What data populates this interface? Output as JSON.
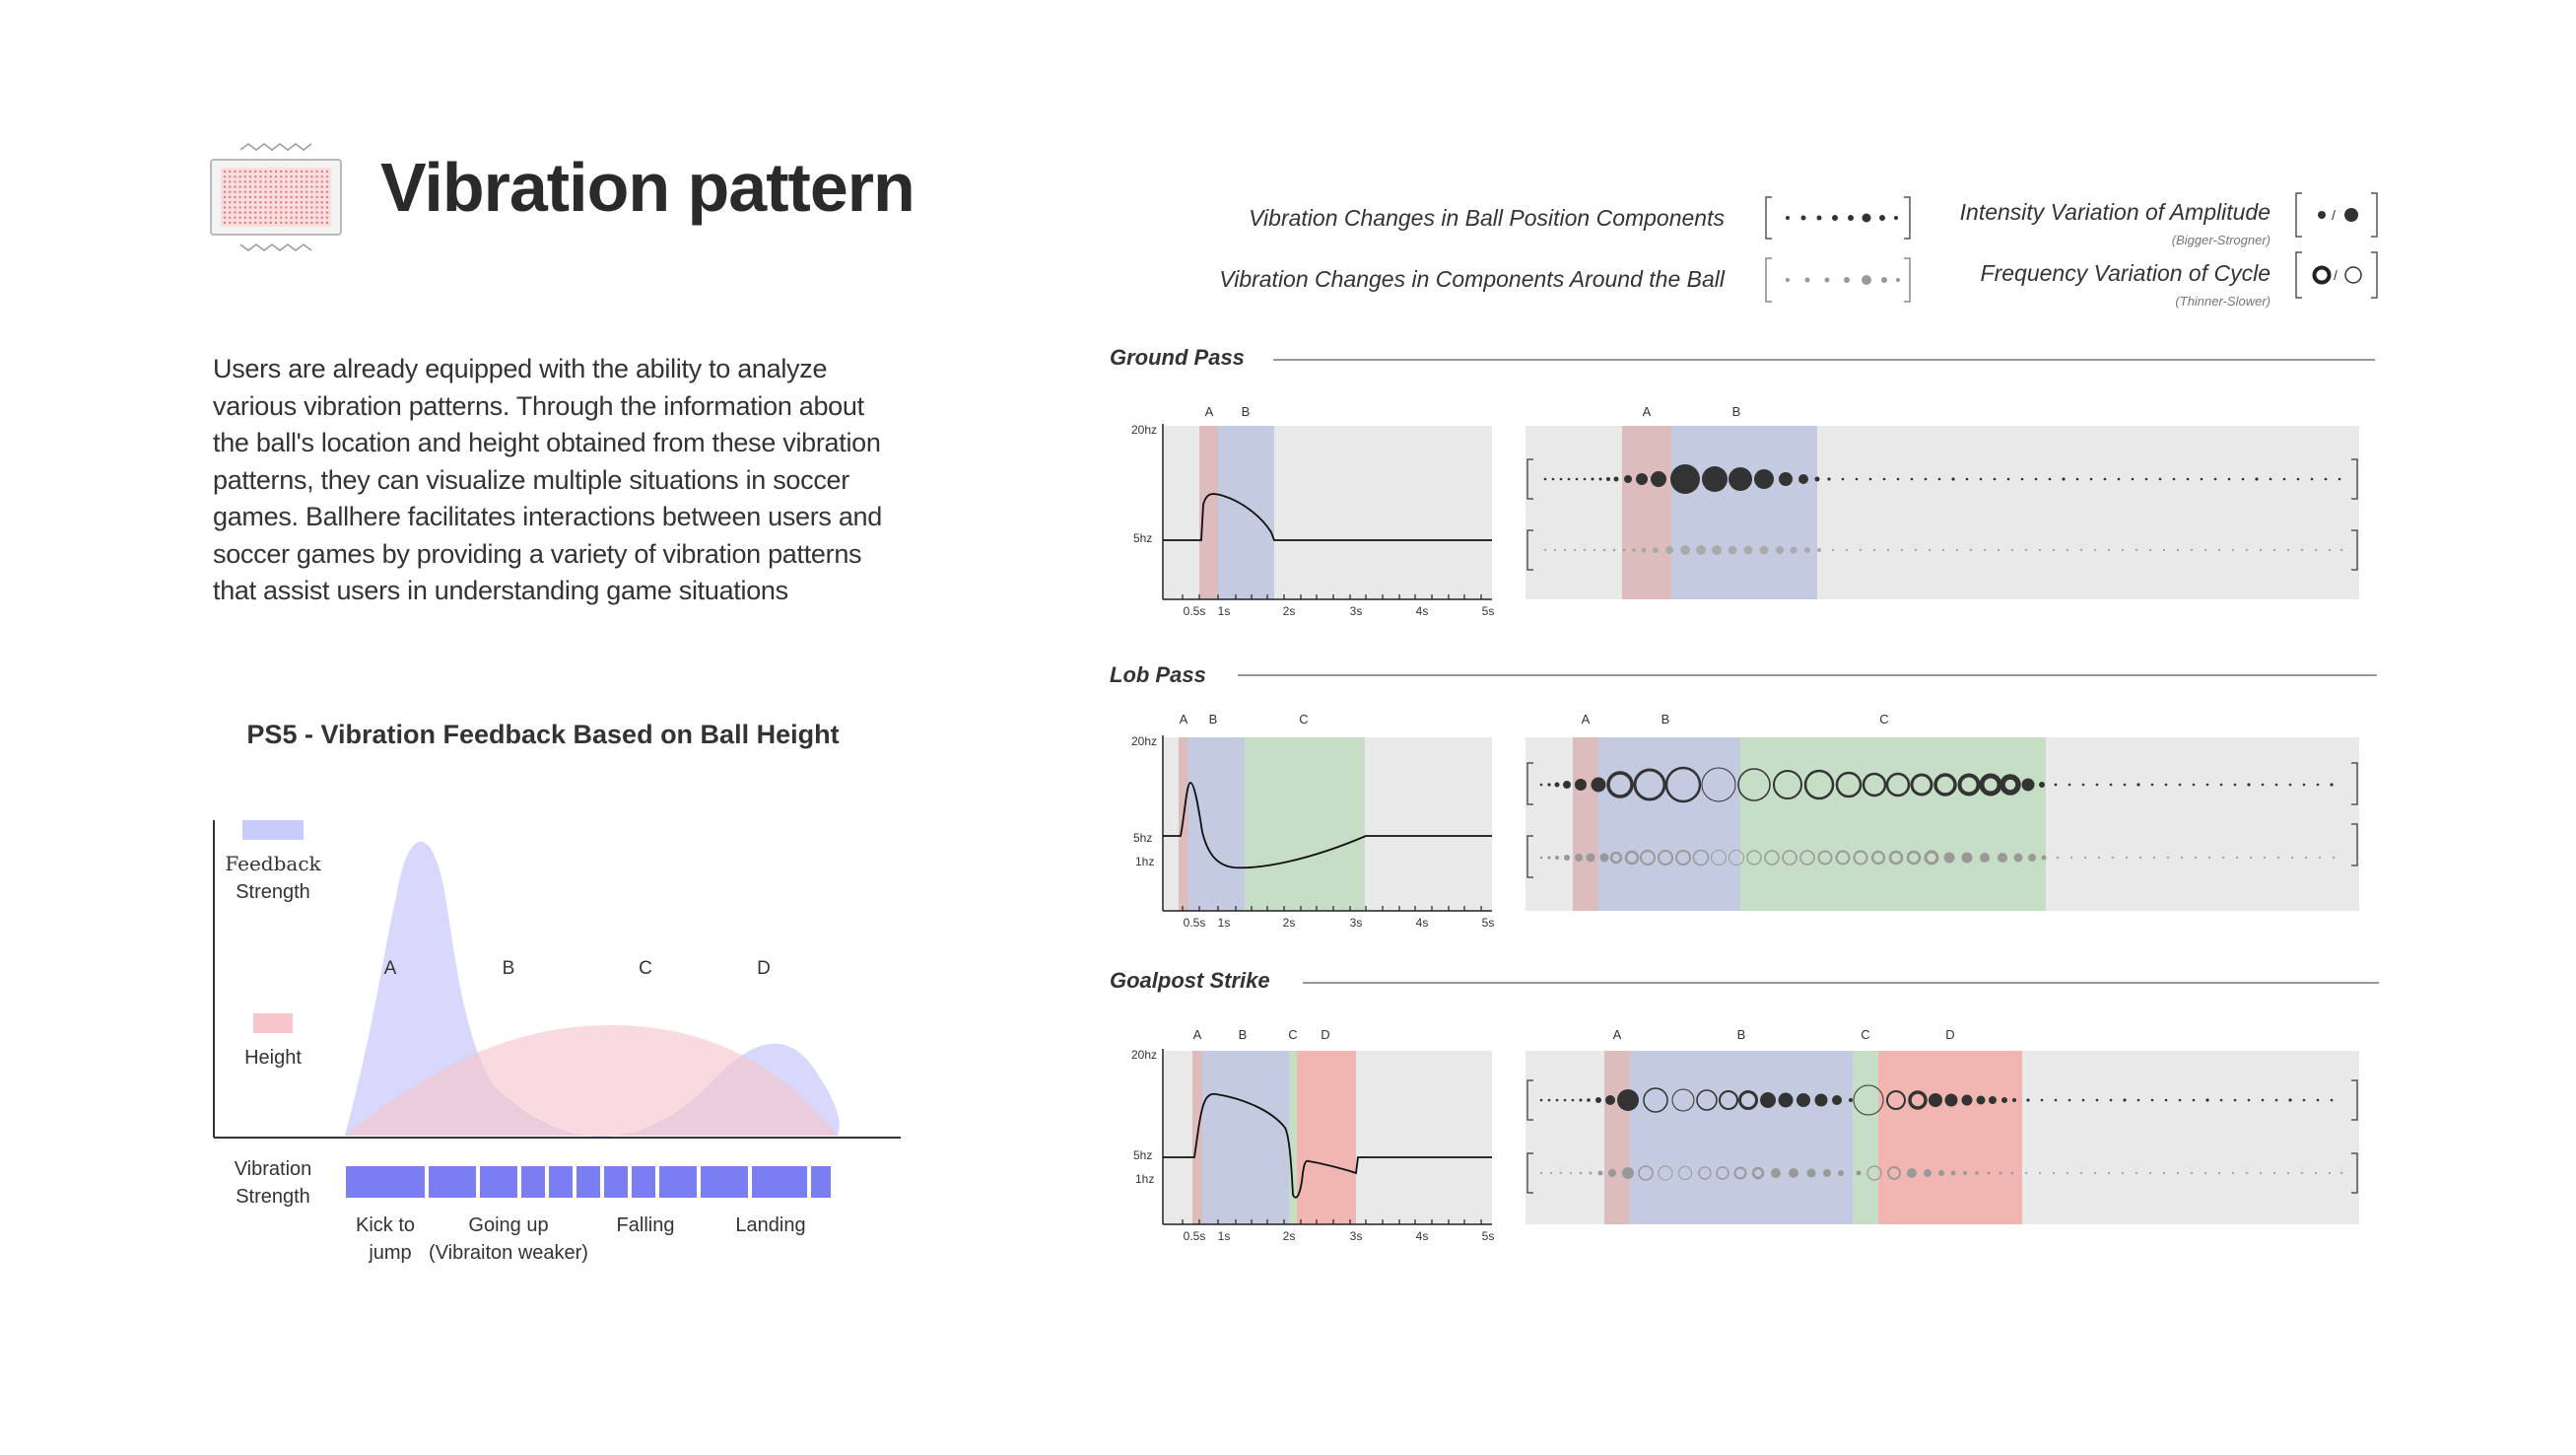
{
  "header": {
    "title": "Vibration pattern"
  },
  "description": {
    "lines": [
      "Users are already equipped with the ability to analyze",
      "various vibration patterns. Through the information about",
      "the ball's location and height obtained from these vibration",
      "patterns, they can visualize multiple situations in soccer",
      "games. Ballhere facilitates interactions between users and",
      "soccer games by providing a variety of vibration patterns",
      "that assist users in understanding game situations"
    ]
  },
  "ps5": {
    "title": "PS5 - Vibration Feedback Based on Ball Height",
    "legend_feedback": [
      "Feedback",
      "Strength"
    ],
    "legend_height": "Height",
    "vibration_label": [
      "Vibration",
      "Strength"
    ],
    "phases": [
      "A",
      "B",
      "C",
      "D"
    ],
    "phase_labels": {
      "kick": [
        "Kick  to",
        "jump"
      ],
      "going_up": [
        "Going  up",
        "(Vibraiton  weaker)"
      ],
      "falling": "Falling",
      "landing": "Landing"
    },
    "colors": {
      "feedback": "#c9cbfa",
      "height": "#f6c6cc",
      "vibration": "#7b7ef2"
    }
  },
  "legend": {
    "ball_position": "Vibration Changes in Ball Position Components",
    "around_ball": "Vibration Changes in Components Around the Ball",
    "amplitude": "Intensity Variation of Amplitude",
    "amplitude_sub": "(Bigger-Strogner)",
    "cycle": "Frequency Variation of Cycle",
    "cycle_sub": "(Thinner-Slower)"
  },
  "axis": {
    "y_top": "20hz",
    "y_mid": "5hz",
    "y_low": "1hz",
    "x_ticks": [
      "0.5s",
      "1s",
      "2s",
      "3s",
      "4s",
      "5s"
    ]
  },
  "sections": [
    {
      "title": "Ground Pass",
      "phases": [
        "A",
        "B"
      ]
    },
    {
      "title": "Lob Pass",
      "phases": [
        "A",
        "B",
        "C"
      ]
    },
    {
      "title": "Goalpost Strike",
      "phases": [
        "A",
        "B",
        "C",
        "D"
      ]
    }
  ],
  "colors": {
    "phase_a": "#dcbcbc",
    "phase_b": "#c4cae0",
    "phase_c": "#c6ddc6",
    "phase_d": "#f2b6b2",
    "panel": "#e9e9e9",
    "dot_dark": "#3a3a3a",
    "dot_light": "#a9a9a9"
  }
}
